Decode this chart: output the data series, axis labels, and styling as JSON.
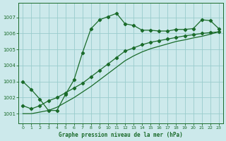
{
  "title": "Graphe pression niveau de la mer (hPa)",
  "background_color": "#cce9eb",
  "grid_color": "#99cccc",
  "line_color": "#1a6b2a",
  "x_ticks": [
    0,
    1,
    2,
    3,
    4,
    5,
    6,
    7,
    8,
    9,
    10,
    11,
    12,
    13,
    14,
    15,
    16,
    17,
    18,
    19,
    20,
    21,
    22,
    23
  ],
  "y_ticks": [
    1001,
    1002,
    1003,
    1004,
    1005,
    1006,
    1007
  ],
  "ylim": [
    1000.4,
    1007.9
  ],
  "xlim": [
    -0.5,
    23.5
  ],
  "series1_x": [
    0,
    1,
    2,
    3,
    4,
    5,
    6,
    7,
    8,
    9,
    10,
    11,
    12,
    13,
    14,
    15,
    16,
    17,
    18,
    19,
    20,
    21,
    22,
    23
  ],
  "series1_y": [
    1003.0,
    1002.5,
    1001.9,
    1001.2,
    1001.2,
    1002.2,
    1003.1,
    1004.8,
    1006.3,
    1006.85,
    1007.05,
    1007.25,
    1006.6,
    1006.5,
    1006.2,
    1006.2,
    1006.15,
    1006.15,
    1006.25,
    1006.25,
    1006.3,
    1006.85,
    1006.8,
    1006.3
  ],
  "series2_x": [
    0,
    1,
    2,
    3,
    4,
    5,
    6,
    7,
    8,
    9,
    10,
    11,
    12,
    13,
    14,
    15,
    16,
    17,
    18,
    19,
    20,
    21,
    22,
    23
  ],
  "series2_y": [
    1001.5,
    1001.3,
    1001.5,
    1001.8,
    1002.0,
    1002.3,
    1002.6,
    1002.9,
    1003.3,
    1003.7,
    1004.1,
    1004.5,
    1004.9,
    1005.1,
    1005.3,
    1005.45,
    1005.55,
    1005.65,
    1005.75,
    1005.85,
    1005.92,
    1006.0,
    1006.05,
    1006.1
  ],
  "series3_x": [
    0,
    1,
    2,
    3,
    4,
    5,
    6,
    7,
    8,
    9,
    10,
    11,
    12,
    13,
    14,
    15,
    16,
    17,
    18,
    19,
    20,
    21,
    22,
    23
  ],
  "series3_y": [
    1001.0,
    1001.0,
    1001.1,
    1001.2,
    1001.4,
    1001.7,
    1002.0,
    1002.35,
    1002.7,
    1003.1,
    1003.5,
    1003.9,
    1004.3,
    1004.6,
    1004.85,
    1005.05,
    1005.2,
    1005.35,
    1005.5,
    1005.6,
    1005.72,
    1005.82,
    1005.95,
    1006.1
  ]
}
